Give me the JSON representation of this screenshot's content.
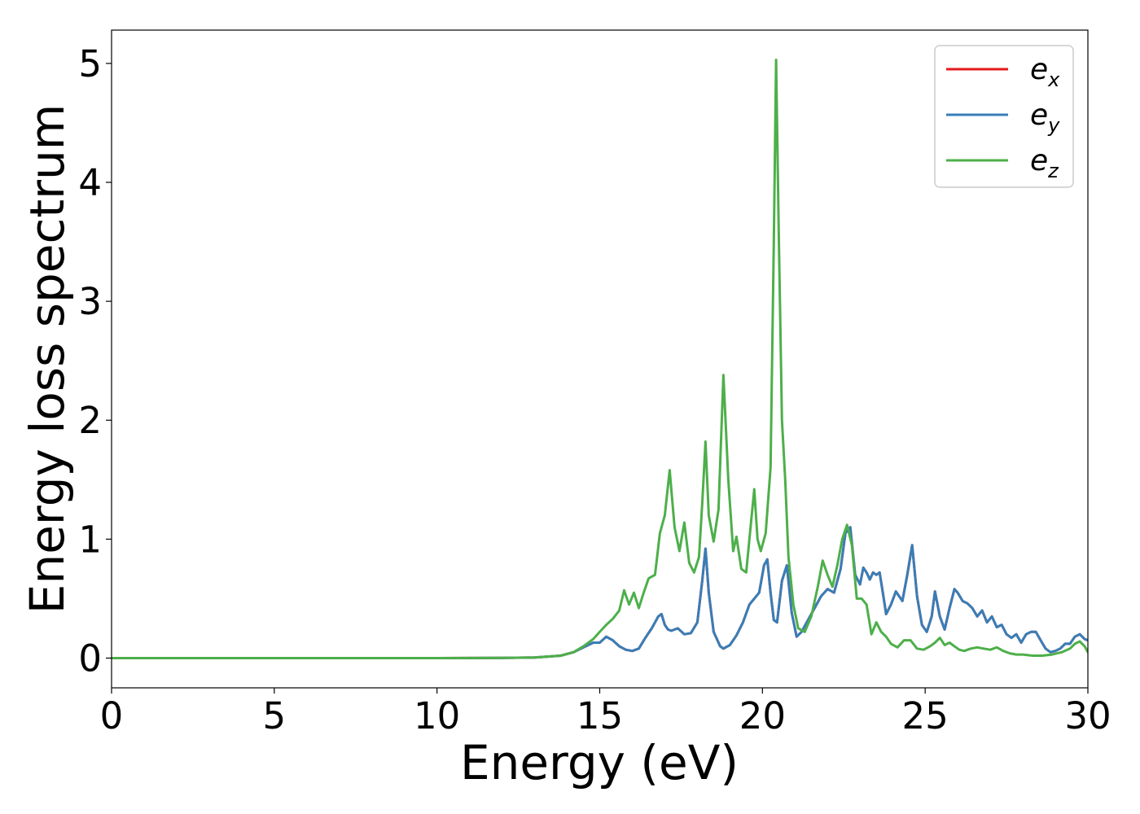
{
  "chart_data": {
    "type": "line",
    "xlabel": "Energy (eV)",
    "ylabel": "Energy loss spectrum",
    "xlim": [
      0,
      30
    ],
    "ylim": [
      -0.25,
      5.28
    ],
    "xticks": [
      0,
      5,
      10,
      15,
      20,
      25,
      30
    ],
    "yticks": [
      0,
      1,
      2,
      3,
      4,
      5
    ],
    "grid": false,
    "legend_position": "top-right",
    "series": [
      {
        "name": "e",
        "subscript": "x",
        "color": "#e41a1c",
        "x": [
          0,
          5,
          10,
          12,
          13,
          13.8,
          14.2,
          14.5,
          14.8,
          15.0,
          15.2,
          15.4,
          15.6,
          15.8,
          16.0,
          16.2,
          16.4,
          16.6,
          16.8,
          16.9,
          17.0,
          17.1,
          17.2,
          17.4,
          17.6,
          17.8,
          18.0,
          18.15,
          18.25,
          18.35,
          18.5,
          18.7,
          18.8,
          19.0,
          19.2,
          19.4,
          19.6,
          19.75,
          19.9,
          20.05,
          20.15,
          20.25,
          20.35,
          20.45,
          20.6,
          20.75,
          20.9,
          21.05,
          21.2,
          21.4,
          21.6,
          21.8,
          22.0,
          22.2,
          22.4,
          22.55,
          22.7,
          22.85,
          23.0,
          23.1,
          23.2,
          23.3,
          23.4,
          23.5,
          23.6,
          23.7,
          23.8,
          23.95,
          24.1,
          24.3,
          24.45,
          24.6,
          24.75,
          24.9,
          25.05,
          25.2,
          25.3,
          25.45,
          25.6,
          25.75,
          25.9,
          26.0,
          26.15,
          26.3,
          26.45,
          26.6,
          26.75,
          26.9,
          27.05,
          27.2,
          27.35,
          27.5,
          27.65,
          27.8,
          27.95,
          28.1,
          28.25,
          28.4,
          28.55,
          28.7,
          28.85,
          29.0,
          29.15,
          29.3,
          29.45,
          29.6,
          29.75,
          29.9,
          30.0
        ],
        "y": [
          0,
          0,
          0,
          0.002,
          0.005,
          0.02,
          0.05,
          0.09,
          0.13,
          0.13,
          0.18,
          0.15,
          0.1,
          0.07,
          0.06,
          0.08,
          0.17,
          0.25,
          0.35,
          0.37,
          0.28,
          0.24,
          0.23,
          0.25,
          0.2,
          0.21,
          0.3,
          0.65,
          0.92,
          0.55,
          0.22,
          0.1,
          0.08,
          0.11,
          0.19,
          0.3,
          0.45,
          0.5,
          0.55,
          0.78,
          0.83,
          0.55,
          0.32,
          0.3,
          0.65,
          0.78,
          0.38,
          0.18,
          0.22,
          0.32,
          0.42,
          0.52,
          0.58,
          0.55,
          0.75,
          1.05,
          1.1,
          0.7,
          0.62,
          0.76,
          0.72,
          0.66,
          0.72,
          0.7,
          0.72,
          0.55,
          0.37,
          0.45,
          0.56,
          0.48,
          0.7,
          0.95,
          0.52,
          0.28,
          0.22,
          0.35,
          0.56,
          0.35,
          0.24,
          0.42,
          0.58,
          0.55,
          0.48,
          0.46,
          0.42,
          0.35,
          0.4,
          0.3,
          0.35,
          0.26,
          0.28,
          0.2,
          0.17,
          0.2,
          0.13,
          0.2,
          0.22,
          0.22,
          0.15,
          0.08,
          0.05,
          0.06,
          0.08,
          0.12,
          0.12,
          0.18,
          0.2,
          0.16,
          0.15
        ]
      },
      {
        "name": "e",
        "subscript": "y",
        "color": "#377eb8",
        "x": [
          0,
          5,
          10,
          12,
          13,
          13.8,
          14.2,
          14.5,
          14.8,
          15.0,
          15.2,
          15.4,
          15.6,
          15.8,
          16.0,
          16.2,
          16.4,
          16.6,
          16.8,
          16.9,
          17.0,
          17.1,
          17.2,
          17.4,
          17.6,
          17.8,
          18.0,
          18.15,
          18.25,
          18.35,
          18.5,
          18.7,
          18.8,
          19.0,
          19.2,
          19.4,
          19.6,
          19.75,
          19.9,
          20.05,
          20.15,
          20.25,
          20.35,
          20.45,
          20.6,
          20.75,
          20.9,
          21.05,
          21.2,
          21.4,
          21.6,
          21.8,
          22.0,
          22.2,
          22.4,
          22.55,
          22.7,
          22.85,
          23.0,
          23.1,
          23.2,
          23.3,
          23.4,
          23.5,
          23.6,
          23.7,
          23.8,
          23.95,
          24.1,
          24.3,
          24.45,
          24.6,
          24.75,
          24.9,
          25.05,
          25.2,
          25.3,
          25.45,
          25.6,
          25.75,
          25.9,
          26.0,
          26.15,
          26.3,
          26.45,
          26.6,
          26.75,
          26.9,
          27.05,
          27.2,
          27.35,
          27.5,
          27.65,
          27.8,
          27.95,
          28.1,
          28.25,
          28.4,
          28.55,
          28.7,
          28.85,
          29.0,
          29.15,
          29.3,
          29.45,
          29.6,
          29.75,
          29.9,
          30.0
        ],
        "y": [
          0,
          0,
          0,
          0.002,
          0.005,
          0.02,
          0.05,
          0.09,
          0.13,
          0.13,
          0.18,
          0.15,
          0.1,
          0.07,
          0.06,
          0.08,
          0.17,
          0.25,
          0.35,
          0.37,
          0.28,
          0.24,
          0.23,
          0.25,
          0.2,
          0.21,
          0.3,
          0.65,
          0.92,
          0.55,
          0.22,
          0.1,
          0.08,
          0.11,
          0.19,
          0.3,
          0.45,
          0.5,
          0.55,
          0.78,
          0.83,
          0.55,
          0.32,
          0.3,
          0.65,
          0.78,
          0.38,
          0.18,
          0.22,
          0.32,
          0.42,
          0.52,
          0.58,
          0.55,
          0.75,
          1.05,
          1.1,
          0.7,
          0.62,
          0.76,
          0.72,
          0.66,
          0.72,
          0.7,
          0.72,
          0.55,
          0.37,
          0.45,
          0.56,
          0.48,
          0.7,
          0.95,
          0.52,
          0.28,
          0.22,
          0.35,
          0.56,
          0.35,
          0.24,
          0.42,
          0.58,
          0.55,
          0.48,
          0.46,
          0.42,
          0.35,
          0.4,
          0.3,
          0.35,
          0.26,
          0.28,
          0.2,
          0.17,
          0.2,
          0.13,
          0.2,
          0.22,
          0.22,
          0.15,
          0.08,
          0.05,
          0.06,
          0.08,
          0.12,
          0.12,
          0.18,
          0.2,
          0.16,
          0.15
        ]
      },
      {
        "name": "e",
        "subscript": "z",
        "color": "#4daf4a",
        "x": [
          0,
          5,
          10,
          12,
          13,
          13.8,
          14.2,
          14.5,
          14.8,
          15.0,
          15.2,
          15.4,
          15.6,
          15.75,
          15.9,
          16.05,
          16.2,
          16.35,
          16.5,
          16.7,
          16.85,
          17.0,
          17.15,
          17.3,
          17.45,
          17.6,
          17.75,
          17.9,
          18.05,
          18.15,
          18.25,
          18.35,
          18.5,
          18.65,
          18.8,
          18.95,
          19.1,
          19.2,
          19.35,
          19.5,
          19.6,
          19.75,
          19.85,
          19.95,
          20.1,
          20.25,
          20.35,
          20.42,
          20.5,
          20.6,
          20.7,
          20.8,
          20.95,
          21.1,
          21.3,
          21.5,
          21.7,
          21.85,
          22.0,
          22.15,
          22.3,
          22.45,
          22.6,
          22.75,
          22.9,
          23.05,
          23.2,
          23.35,
          23.5,
          23.65,
          23.8,
          23.95,
          24.15,
          24.35,
          24.55,
          24.75,
          24.95,
          25.15,
          25.3,
          25.45,
          25.6,
          25.75,
          25.9,
          26.05,
          26.2,
          26.4,
          26.6,
          26.8,
          27.0,
          27.2,
          27.4,
          27.6,
          27.8,
          28.0,
          28.3,
          28.6,
          28.9,
          29.2,
          29.45,
          29.6,
          29.75,
          29.9,
          30.0
        ],
        "y": [
          0,
          0,
          0,
          0.002,
          0.005,
          0.02,
          0.05,
          0.1,
          0.16,
          0.22,
          0.28,
          0.33,
          0.4,
          0.57,
          0.45,
          0.55,
          0.42,
          0.55,
          0.67,
          0.7,
          1.05,
          1.2,
          1.58,
          1.1,
          0.9,
          1.14,
          0.8,
          0.72,
          0.85,
          1.3,
          1.82,
          1.2,
          0.98,
          1.25,
          2.38,
          1.5,
          0.9,
          1.02,
          0.75,
          0.72,
          1.0,
          1.42,
          1.0,
          0.9,
          1.05,
          1.6,
          3.5,
          5.03,
          3.6,
          2.0,
          1.5,
          0.85,
          0.45,
          0.25,
          0.22,
          0.35,
          0.6,
          0.82,
          0.7,
          0.6,
          0.78,
          1.0,
          1.12,
          0.95,
          0.5,
          0.5,
          0.45,
          0.2,
          0.3,
          0.22,
          0.18,
          0.12,
          0.09,
          0.15,
          0.15,
          0.08,
          0.07,
          0.1,
          0.13,
          0.17,
          0.11,
          0.13,
          0.1,
          0.07,
          0.06,
          0.08,
          0.09,
          0.08,
          0.07,
          0.09,
          0.06,
          0.04,
          0.03,
          0.03,
          0.02,
          0.02,
          0.03,
          0.05,
          0.08,
          0.12,
          0.14,
          0.1,
          0.05
        ]
      }
    ]
  }
}
